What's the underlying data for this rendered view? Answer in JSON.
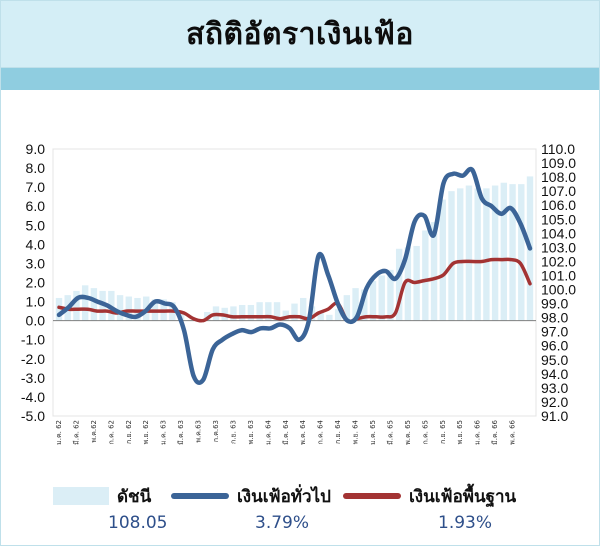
{
  "title": "สถิติอัตราเงินเฟ้อ",
  "chart_data": {
    "type": "line",
    "left_axis": {
      "min": -5.0,
      "max": 9.0,
      "step": 1.0,
      "ticks": [
        "9.0",
        "8.0",
        "7.0",
        "6.0",
        "5.0",
        "4.0",
        "3.0",
        "2.0",
        "1.0",
        "0.0",
        "-1.0",
        "-2.0",
        "-3.0",
        "-4.0",
        "-5.0"
      ]
    },
    "right_axis": {
      "min": 91.0,
      "max": 110.0,
      "step": 1.0,
      "ticks": [
        "110.0",
        "109.0",
        "108.0",
        "107.0",
        "106.0",
        "105.0",
        "104.0",
        "103.0",
        "102.0",
        "101.0",
        "100.0",
        "99.0",
        "98.0",
        "97.0",
        "96.0",
        "95.0",
        "94.0",
        "93.0",
        "92.0",
        "91.0"
      ]
    },
    "x_labels": [
      "ม.ค. 62",
      "มี.ค. 62",
      "พ.ค.62",
      "ก.ค. 62",
      "ก.ย. 62",
      "พ.ย. 62",
      "ม.ค. 63",
      "มี.ค. 63",
      "พ.ค.63",
      "ก.ค.63",
      "ก.ย. 63",
      "พ.ย. 63",
      "ม.ค. 64",
      "มี.ค. 64",
      "พ.ค. 64",
      "ก.ค. 64",
      "ก.ย. 64",
      "พ.ย. 64",
      "ม.ค. 65",
      "มี.ค. 65",
      "พ.ค. 65",
      "ก.ค. 65",
      "ก.ย. 65",
      "พ.ย. 65",
      "ม.ค. 66",
      "มี.ค. 66",
      "พ.ค. 66"
    ],
    "x_label_months": [
      0,
      2,
      4,
      6,
      8,
      10,
      12,
      14,
      16,
      18,
      20,
      22,
      24,
      26,
      28,
      30,
      32,
      34,
      36,
      38,
      40,
      42,
      44,
      46,
      48,
      50,
      52
    ],
    "series": [
      {
        "name": "ดัชนี",
        "kind": "bar",
        "axis": "right",
        "color": "#dbeef6",
        "values": [
          99.4,
          99.6,
          99.9,
          100.3,
          100.1,
          99.9,
          99.9,
          99.6,
          99.5,
          99.4,
          99.5,
          99.3,
          99.3,
          99.1,
          98.3,
          97.8,
          97.7,
          98.4,
          98.8,
          98.7,
          98.8,
          98.9,
          98.9,
          99.1,
          99.1,
          99.1,
          98.5,
          99.0,
          99.4,
          98.8,
          98.4,
          98.2,
          98.6,
          99.6,
          100.1,
          100.0,
          100.6,
          101.0,
          101.4,
          102.9,
          103.0,
          103.1,
          104.2,
          104.8,
          106.4,
          107.0,
          107.2,
          107.4,
          107.2,
          107.2,
          107.4,
          107.6,
          107.5,
          107.5,
          108.05
        ]
      },
      {
        "name": "เงินเฟ้อทั่วไป",
        "kind": "line",
        "axis": "left",
        "color": "#3b6497",
        "values": [
          0.3,
          0.7,
          1.2,
          1.2,
          1.0,
          0.8,
          0.5,
          0.3,
          0.2,
          0.5,
          1.0,
          0.9,
          0.7,
          -0.5,
          -2.9,
          -3.1,
          -1.5,
          -1.0,
          -0.7,
          -0.5,
          -0.6,
          -0.4,
          -0.4,
          -0.2,
          -0.4,
          -1.0,
          0.0,
          3.4,
          2.4,
          0.9,
          0.0,
          0.2,
          1.7,
          2.4,
          2.6,
          2.2,
          3.2,
          5.2,
          5.5,
          4.5,
          7.2,
          7.7,
          7.6,
          7.9,
          6.4,
          6.0,
          5.6,
          5.9,
          5.1,
          3.79
        ]
      },
      {
        "name": "เงินเฟ้อพื้นฐาน",
        "kind": "line",
        "axis": "left",
        "color": "#a33333",
        "values": [
          0.7,
          0.6,
          0.6,
          0.6,
          0.5,
          0.5,
          0.4,
          0.5,
          0.5,
          0.5,
          0.5,
          0.5,
          0.5,
          0.4,
          0.1,
          0.0,
          0.3,
          0.3,
          0.2,
          0.2,
          0.2,
          0.2,
          0.2,
          0.1,
          0.2,
          0.2,
          0.1,
          0.4,
          0.6,
          0.9,
          0.0,
          0.1,
          0.2,
          0.2,
          0.2,
          0.4,
          2.0,
          2.0,
          2.1,
          2.2,
          2.4,
          3.0,
          3.1,
          3.1,
          3.1,
          3.2,
          3.2,
          3.2,
          3.0,
          1.93
        ]
      }
    ]
  },
  "legend": {
    "index_label": "ดัชนี",
    "headline_label": "เงินเฟ้อทั่วไป",
    "core_label": "เงินเฟ้อพื้นฐาน",
    "index_value": "108.05",
    "headline_value": "3.79%",
    "core_value": "1.93%"
  },
  "colors": {
    "header_bg": "#d4eef6",
    "band": "#8fcde0",
    "headline": "#3b6497",
    "core": "#a33333",
    "index": "#dbeef6"
  }
}
